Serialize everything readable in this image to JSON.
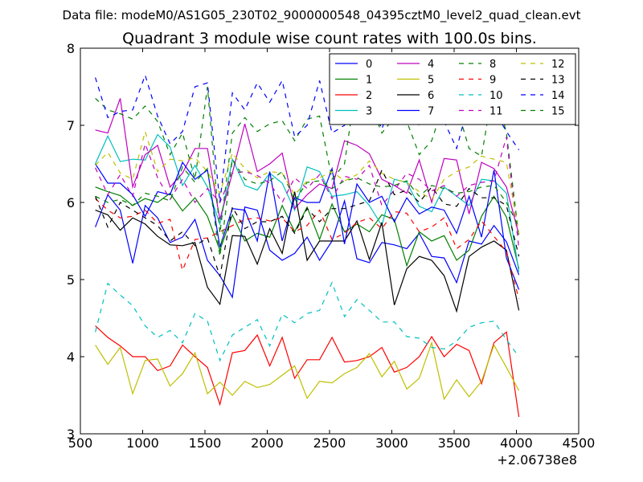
{
  "chart_data": {
    "type": "line",
    "suptitle": "Data file: modeM0/AS1G05_230T02_9000000548_04395cztM0_level2_quad_clean.evt",
    "title": "Quadrant 3 module wise count rates with 100.0s bins.",
    "xlabel": "",
    "ylabel": "",
    "x_offset_label": "+2.06738e8",
    "xlim": [
      500,
      4500
    ],
    "ylim": [
      3,
      8
    ],
    "xticks": [
      500,
      1000,
      1500,
      2000,
      2500,
      3000,
      3500,
      4000,
      4500
    ],
    "yticks": [
      3,
      4,
      5,
      6,
      7,
      8
    ],
    "grid": false,
    "legend": {
      "placement": "top-right",
      "columns": 4
    },
    "x": [
      620,
      720,
      820,
      920,
      1020,
      1120,
      1220,
      1320,
      1420,
      1520,
      1620,
      1720,
      1820,
      1920,
      2020,
      2120,
      2220,
      2320,
      2420,
      2520,
      2620,
      2720,
      2820,
      2920,
      3020,
      3120,
      3220,
      3320,
      3420,
      3520,
      3620,
      3720,
      3820,
      3920,
      4020
    ],
    "series": [
      {
        "name": "0",
        "color": "#0000ff",
        "dash": "solid",
        "values": [
          5.68,
          6.1,
          5.9,
          5.21,
          5.96,
          5.8,
          5.48,
          5.55,
          5.78,
          5.25,
          5.05,
          4.77,
          5.94,
          5.9,
          5.38,
          5.25,
          5.34,
          5.55,
          5.25,
          5.5,
          6.02,
          5.27,
          5.22,
          5.48,
          5.45,
          5.4,
          5.6,
          5.3,
          5.28,
          4.96,
          5.5,
          5.46,
          5.7,
          5.49,
          5.06
        ]
      },
      {
        "name": "1",
        "color": "#008000",
        "dash": "solid",
        "values": [
          6.2,
          6.14,
          6.09,
          5.96,
          6.05,
          6.0,
          6.12,
          5.89,
          6.06,
          5.82,
          5.38,
          5.84,
          5.5,
          5.6,
          5.55,
          5.96,
          5.62,
          5.94,
          5.52,
          5.98,
          5.62,
          5.72,
          5.62,
          5.84,
          5.78,
          5.18,
          5.62,
          5.5,
          5.57,
          5.25,
          5.38,
          5.82,
          6.08,
          5.81,
          5.14
        ]
      },
      {
        "name": "2",
        "color": "#ff0000",
        "dash": "solid",
        "values": [
          4.4,
          4.25,
          4.14,
          4.0,
          4.0,
          3.82,
          3.88,
          4.15,
          4.0,
          3.86,
          3.38,
          4.05,
          4.08,
          4.28,
          3.88,
          4.25,
          3.72,
          3.96,
          3.96,
          4.25,
          3.93,
          3.95,
          4.0,
          4.12,
          3.8,
          3.86,
          4.0,
          4.26,
          4.0,
          4.16,
          4.08,
          3.65,
          4.18,
          4.32,
          3.22
        ]
      },
      {
        "name": "3",
        "color": "#00bfbf",
        "dash": "solid",
        "values": [
          6.5,
          6.86,
          6.53,
          6.56,
          6.55,
          6.88,
          6.72,
          6.22,
          6.48,
          6.2,
          5.72,
          6.56,
          6.22,
          6.16,
          6.38,
          6.25,
          5.9,
          6.46,
          6.4,
          6.08,
          6.1,
          6.14,
          5.96,
          5.7,
          6.3,
          6.26,
          5.95,
          5.88,
          6.2,
          6.08,
          5.96,
          6.3,
          6.28,
          6.12,
          5.1
        ]
      },
      {
        "name": "4",
        "color": "#bf00bf",
        "dash": "solid",
        "values": [
          6.94,
          6.9,
          7.35,
          6.2,
          6.62,
          6.74,
          6.2,
          6.38,
          6.7,
          6.7,
          5.78,
          6.38,
          7.02,
          6.4,
          6.5,
          6.64,
          5.92,
          6.1,
          6.24,
          6.18,
          6.8,
          6.74,
          6.63,
          6.3,
          6.22,
          6.12,
          6.55,
          6.0,
          6.57,
          6.55,
          5.85,
          6.52,
          6.44,
          6.2,
          5.58
        ]
      },
      {
        "name": "5",
        "color": "#bfbf00",
        "dash": "solid",
        "values": [
          4.15,
          3.9,
          4.12,
          3.52,
          3.95,
          3.97,
          3.62,
          3.78,
          4.05,
          3.52,
          3.67,
          3.5,
          3.68,
          3.6,
          3.64,
          3.76,
          3.88,
          3.46,
          3.68,
          3.66,
          3.78,
          3.86,
          4.04,
          3.74,
          3.94,
          3.58,
          3.72,
          4.18,
          3.45,
          3.7,
          3.48,
          3.68,
          4.15,
          3.86,
          3.56
        ]
      },
      {
        "name": "6",
        "color": "#000000",
        "dash": "solid",
        "values": [
          5.9,
          5.84,
          5.64,
          5.8,
          5.72,
          5.56,
          5.45,
          5.44,
          5.48,
          4.9,
          4.68,
          5.57,
          5.56,
          5.2,
          5.66,
          5.34,
          6.14,
          5.25,
          5.5,
          5.5,
          5.5,
          5.76,
          5.26,
          5.74,
          4.67,
          5.14,
          5.3,
          5.25,
          5.05,
          4.59,
          5.3,
          5.42,
          5.5,
          5.38,
          4.6
        ]
      },
      {
        "name": "7",
        "color": "#0000ff",
        "dash": "solid",
        "values": [
          6.5,
          6.25,
          6.25,
          6.1,
          5.82,
          6.14,
          6.1,
          6.52,
          6.3,
          6.42,
          5.42,
          5.92,
          5.9,
          5.5,
          6.4,
          5.5,
          6.06,
          6.0,
          6.0,
          6.44,
          5.46,
          6.24,
          6.0,
          6.08,
          5.75,
          6.06,
          5.85,
          5.94,
          5.9,
          5.6,
          6.08,
          5.55,
          6.42,
          5.28,
          4.87
        ]
      },
      {
        "name": "8",
        "color": "#008000",
        "dash": "dashed",
        "values": [
          7.35,
          7.2,
          7.15,
          7.08,
          7.25,
          7.05,
          6.62,
          6.9,
          6.3,
          7.5,
          5.6,
          6.9,
          7.1,
          6.92,
          7.02,
          7.06,
          6.8,
          7.08,
          7.12,
          6.3,
          6.5,
          7.6,
          7.3,
          6.9,
          7.1,
          7.05,
          6.62,
          6.8,
          7.3,
          7.25,
          6.7,
          6.6,
          7.55,
          6.9,
          5.55
        ]
      },
      {
        "name": "9",
        "color": "#ff0000",
        "dash": "dashed",
        "values": [
          6.05,
          5.9,
          5.8,
          5.82,
          5.9,
          5.73,
          5.78,
          5.12,
          5.52,
          5.54,
          5.62,
          5.7,
          5.78,
          5.8,
          5.76,
          5.8,
          5.62,
          5.7,
          5.9,
          5.52,
          5.6,
          5.74,
          5.8,
          5.66,
          5.88,
          5.86,
          5.62,
          5.68,
          5.8,
          5.4,
          5.52,
          5.76,
          5.56,
          5.36,
          4.75
        ]
      },
      {
        "name": "10",
        "color": "#00bfbf",
        "dash": "dashed",
        "values": [
          4.32,
          4.95,
          4.8,
          4.66,
          4.4,
          4.25,
          4.34,
          4.18,
          4.56,
          4.46,
          3.95,
          4.28,
          4.38,
          4.48,
          4.14,
          4.55,
          4.44,
          4.56,
          4.6,
          4.96,
          4.52,
          4.74,
          4.6,
          4.45,
          4.45,
          4.26,
          4.24,
          4.12,
          4.1,
          4.2,
          4.38,
          4.44,
          4.46,
          4.22,
          4.0
        ]
      },
      {
        "name": "11",
        "color": "#bf00bf",
        "dash": "dashed",
        "values": [
          6.45,
          6.1,
          6.36,
          6.08,
          6.76,
          6.32,
          6.04,
          6.3,
          6.0,
          6.18,
          6.0,
          6.38,
          6.4,
          6.35,
          6.25,
          6.0,
          6.32,
          6.18,
          6.36,
          6.05,
          6.34,
          6.3,
          6.48,
          5.96,
          6.16,
          6.38,
          6.3,
          6.15,
          6.22,
          6.08,
          6.22,
          6.26,
          6.28,
          6.85,
          5.4
        ]
      },
      {
        "name": "12",
        "color": "#bfbf00",
        "dash": "dashed",
        "values": [
          6.48,
          6.65,
          6.38,
          6.3,
          6.92,
          6.4,
          6.56,
          6.54,
          6.58,
          6.4,
          6.12,
          6.64,
          6.44,
          6.32,
          6.4,
          6.38,
          6.1,
          6.28,
          6.32,
          6.4,
          6.28,
          6.36,
          6.54,
          6.38,
          6.3,
          6.26,
          6.14,
          6.04,
          6.3,
          6.4,
          6.46,
          6.6,
          6.56,
          6.52,
          5.6
        ]
      },
      {
        "name": "13",
        "color": "#000000",
        "dash": "dashed",
        "values": [
          6.08,
          5.68,
          6.0,
          5.9,
          5.8,
          5.7,
          5.5,
          5.62,
          5.44,
          5.54,
          5.04,
          5.94,
          5.66,
          5.75,
          5.75,
          5.82,
          5.6,
          5.92,
          5.75,
          5.92,
          5.92,
          5.97,
          6.02,
          6.42,
          6.1,
          6.16,
          6.0,
          6.2,
          5.98,
          5.95,
          6.18,
          6.06,
          6.06,
          5.96,
          5.3
        ]
      },
      {
        "name": "14",
        "color": "#0000ff",
        "dash": "dashed",
        "values": [
          7.62,
          7.1,
          7.18,
          7.2,
          7.65,
          7.12,
          6.76,
          6.92,
          7.5,
          7.55,
          6.0,
          7.42,
          7.2,
          7.55,
          7.3,
          7.58,
          6.85,
          7.0,
          7.58,
          6.9,
          7.0,
          7.3,
          7.35,
          6.95,
          7.45,
          7.3,
          7.0,
          7.4,
          7.05,
          6.7,
          7.3,
          7.35,
          7.2,
          6.92,
          6.68
        ]
      },
      {
        "name": "15",
        "color": "#008000",
        "dash": "dashed",
        "values": [
          6.08,
          6.0,
          6.04,
          5.96,
          6.12,
          6.08,
          6.02,
          6.46,
          6.26,
          6.44,
          5.3,
          6.56,
          6.3,
          6.24,
          6.28,
          6.4,
          6.02,
          6.26,
          6.28,
          6.18,
          6.28,
          6.32,
          6.24,
          6.2,
          6.22,
          6.28,
          6.08,
          6.22,
          6.18,
          6.12,
          6.14,
          6.2,
          6.22,
          6.0,
          5.68
        ]
      }
    ]
  }
}
